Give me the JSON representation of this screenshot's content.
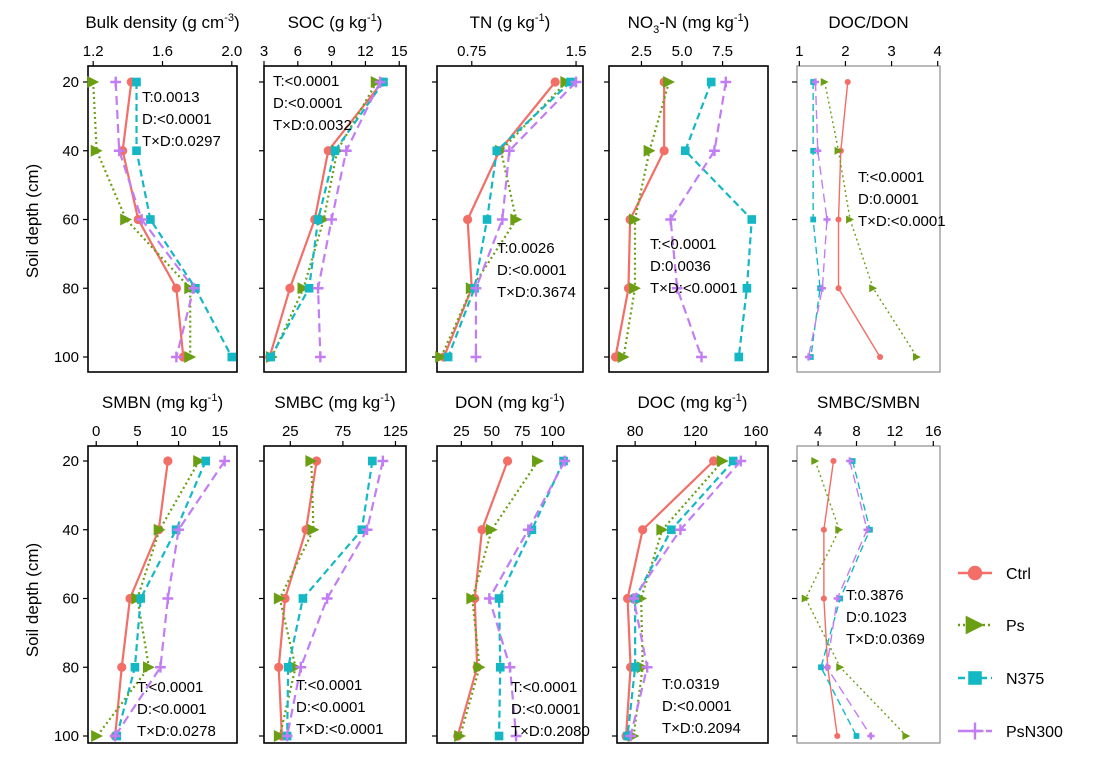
{
  "y_axis_label": "Soil depth (cm)",
  "legend": [
    {
      "name": "Ctrl",
      "color": "#F26E66",
      "marker": "circle",
      "dash": "solid"
    },
    {
      "name": "Ps",
      "color": "#6A9E13",
      "marker": "triangle",
      "dash": "dotted"
    },
    {
      "name": "N375",
      "color": "#14B8C4",
      "marker": "square",
      "dash": "dashed"
    },
    {
      "name": "PsN300",
      "color": "#C27DF5",
      "marker": "plus",
      "dash": "longdash"
    }
  ],
  "chart_data": [
    {
      "type": "line",
      "title": "Bulk density (g cm-3)",
      "title_parts": [
        "Bulk density (g cm",
        "-3",
        ")"
      ],
      "xticks": [
        1.2,
        1.6,
        2.0
      ],
      "xtick_labels": [
        "1.2",
        "1.6",
        "2.0"
      ],
      "xlim": [
        1.17,
        2.03
      ],
      "depth": [
        20,
        40,
        60,
        80,
        100
      ],
      "yticks": [
        20,
        40,
        60,
        80,
        100
      ],
      "series": [
        {
          "name": "Ctrl",
          "values": [
            1.42,
            1.37,
            1.46,
            1.68,
            1.72
          ]
        },
        {
          "name": "Ps",
          "values": [
            1.2,
            1.22,
            1.39,
            1.76,
            1.76
          ]
        },
        {
          "name": "N375",
          "values": [
            1.45,
            1.45,
            1.53,
            1.79,
            2.0
          ]
        },
        {
          "name": "PsN300",
          "values": [
            1.33,
            1.35,
            1.48,
            1.78,
            1.68
          ]
        }
      ],
      "annotations": [
        "T:0.0013",
        "D:<0.0001",
        "T×D:0.0297"
      ]
    },
    {
      "type": "line",
      "title": "SOC (g kg-1)",
      "title_parts": [
        "SOC (g kg",
        "-1",
        ")"
      ],
      "xticks": [
        3,
        6,
        9,
        12,
        15
      ],
      "xtick_labels": [
        "3",
        "6",
        "9",
        "12",
        "15"
      ],
      "xlim": [
        3,
        15.6
      ],
      "depth": [
        20,
        40,
        60,
        80,
        100
      ],
      "yticks": [
        20,
        40,
        60,
        80,
        100
      ],
      "series": [
        {
          "name": "Ctrl",
          "values": [
            13.5,
            8.7,
            7.5,
            5.3,
            3.5
          ]
        },
        {
          "name": "Ps",
          "values": [
            13.0,
            9.5,
            8.3,
            6.5,
            3.7
          ]
        },
        {
          "name": "N375",
          "values": [
            13.6,
            9.3,
            7.8,
            7.0,
            3.6
          ]
        },
        {
          "name": "PsN300",
          "values": [
            13.3,
            10.3,
            9.0,
            7.8,
            8.0
          ]
        }
      ],
      "annotations": [
        "T:<0.0001",
        "D:<0.0001",
        "T×D:0.0032"
      ]
    },
    {
      "type": "line",
      "title": "TN (g kg-1)",
      "title_parts": [
        "TN (g kg",
        "-1",
        ")"
      ],
      "xticks": [
        0.75,
        1.5
      ],
      "xtick_labels": [
        "0.75",
        "1.5"
      ],
      "xlim": [
        0.5,
        1.55
      ],
      "depth": [
        20,
        40,
        60,
        80,
        100
      ],
      "yticks": [
        20,
        40,
        60,
        80,
        100
      ],
      "series": [
        {
          "name": "Ctrl",
          "values": [
            1.35,
            0.95,
            0.72,
            0.75,
            0.55
          ]
        },
        {
          "name": "Ps",
          "values": [
            1.43,
            0.96,
            1.07,
            0.75,
            0.53
          ]
        },
        {
          "name": "N375",
          "values": [
            1.46,
            0.93,
            0.86,
            0.77,
            0.58
          ]
        },
        {
          "name": "PsN300",
          "values": [
            1.5,
            1.02,
            0.97,
            0.78,
            0.78
          ]
        }
      ],
      "annotations": [
        "T:0.0026",
        "D:<0.0001",
        "T×D:0.3674"
      ]
    },
    {
      "type": "line",
      "title": "NO3--N (mg kg-1)",
      "title_parts": [
        "NO",
        "3",
        "-N (mg kg",
        "-1",
        ")"
      ],
      "xticks": [
        2.5,
        5.0,
        7.5
      ],
      "xtick_labels": [
        "2.5",
        "5.0",
        "7.5"
      ],
      "xlim": [
        0.5,
        10.3
      ],
      "depth": [
        20,
        40,
        60,
        80,
        100
      ],
      "yticks": [
        20,
        40,
        60,
        80,
        100
      ],
      "series": [
        {
          "name": "Ctrl",
          "values": [
            3.9,
            3.9,
            1.8,
            1.7,
            0.9
          ]
        },
        {
          "name": "Ps",
          "values": [
            4.2,
            3.0,
            2.1,
            2.1,
            1.4
          ]
        },
        {
          "name": "N375",
          "values": [
            6.8,
            5.2,
            9.3,
            9.0,
            8.5
          ]
        },
        {
          "name": "PsN300",
          "values": [
            7.7,
            7.0,
            4.3,
            4.7,
            6.2
          ]
        }
      ],
      "annotations": [
        "T:<0.0001",
        "D:0.0036",
        "T×D:<0.0001"
      ]
    },
    {
      "type": "line",
      "title": "DOC/DON",
      "title_parts": [
        "DOC/DON"
      ],
      "xticks": [
        1,
        2,
        3,
        4
      ],
      "xtick_labels": [
        "1",
        "2",
        "3",
        "4"
      ],
      "xlim": [
        0.95,
        4.05
      ],
      "depth": [
        20,
        40,
        60,
        80,
        100
      ],
      "yticks": [
        20,
        40,
        60,
        80,
        100
      ],
      "series": [
        {
          "name": "Ctrl",
          "values": [
            2.05,
            1.9,
            1.85,
            1.85,
            2.75
          ]
        },
        {
          "name": "Ps",
          "values": [
            1.55,
            1.85,
            2.1,
            2.6,
            3.55
          ]
        },
        {
          "name": "N375",
          "values": [
            1.3,
            1.3,
            1.3,
            1.45,
            1.25
          ]
        },
        {
          "name": "PsN300",
          "values": [
            1.35,
            1.4,
            1.6,
            1.5,
            1.2
          ]
        }
      ],
      "annotations": [
        "T:<0.0001",
        "D:0.0001",
        "T×D:<0.0001"
      ]
    },
    {
      "type": "line",
      "title": "SMBN (mg kg-1)",
      "title_parts": [
        "SMBN (mg kg",
        "-1",
        ")"
      ],
      "xticks": [
        0,
        5,
        10,
        15
      ],
      "xtick_labels": [
        "0",
        "5",
        "10",
        "15"
      ],
      "xlim": [
        -1.0,
        17.1
      ],
      "depth": [
        20,
        40,
        60,
        80,
        100
      ],
      "yticks": [
        20,
        40,
        60,
        80,
        100
      ],
      "series": [
        {
          "name": "Ctrl",
          "values": [
            8.7,
            7.6,
            4.1,
            3.1,
            2.3
          ]
        },
        {
          "name": "Ps",
          "values": [
            12.5,
            7.7,
            5.0,
            6.4,
            0.1
          ]
        },
        {
          "name": "N375",
          "values": [
            13.3,
            9.7,
            5.4,
            4.7,
            2.5
          ]
        },
        {
          "name": "PsN300",
          "values": [
            15.6,
            10.0,
            8.7,
            7.8,
            2.3
          ]
        }
      ],
      "annotations": [
        "T:<0.0001",
        "D:<0.0001",
        "T×D:0.0278"
      ]
    },
    {
      "type": "line",
      "title": "SMBC (mg kg-1)",
      "title_parts": [
        "SMBC (mg kg",
        "-1",
        ")"
      ],
      "xticks": [
        25,
        75,
        125
      ],
      "xtick_labels": [
        "25",
        "75",
        "125"
      ],
      "xlim": [
        0,
        135
      ],
      "depth": [
        20,
        40,
        60,
        80,
        100
      ],
      "yticks": [
        20,
        40,
        60,
        80,
        100
      ],
      "series": [
        {
          "name": "Ctrl",
          "values": [
            50,
            40,
            20,
            14,
            17
          ]
        },
        {
          "name": "Ps",
          "values": [
            45,
            47,
            15,
            30,
            15
          ]
        },
        {
          "name": "N375",
          "values": [
            103,
            93,
            37,
            23,
            22
          ]
        },
        {
          "name": "PsN300",
          "values": [
            113,
            98,
            60,
            35,
            22
          ]
        }
      ],
      "annotations": [
        "T:<0.0001",
        "D:<0.0001",
        "T×D:<0.0001"
      ]
    },
    {
      "type": "line",
      "title": "DON (mg kg-1)",
      "title_parts": [
        "DON (mg kg",
        "-1",
        ")"
      ],
      "xticks": [
        25,
        50,
        75,
        100
      ],
      "xtick_labels": [
        "25",
        "50",
        "75",
        "100"
      ],
      "xlim": [
        5,
        125
      ],
      "depth": [
        20,
        40,
        60,
        80,
        100
      ],
      "yticks": [
        20,
        40,
        60,
        80,
        100
      ],
      "series": [
        {
          "name": "Ctrl",
          "values": [
            63,
            42,
            36,
            38,
            22
          ]
        },
        {
          "name": "Ps",
          "values": [
            88,
            50,
            34,
            40,
            24
          ]
        },
        {
          "name": "N375",
          "values": [
            109,
            83,
            56,
            57,
            56
          ]
        },
        {
          "name": "PsN300",
          "values": [
            110,
            80,
            48,
            65,
            70
          ]
        }
      ],
      "annotations": [
        "T:<0.0001",
        "D:<0.0001",
        "T×D:0.2080"
      ]
    },
    {
      "type": "line",
      "title": "DOC (mg kg-1)",
      "title_parts": [
        "DOC (mg kg",
        "-1",
        ")"
      ],
      "xticks": [
        80,
        120,
        160
      ],
      "xtick_labels": [
        "80",
        "120",
        "160"
      ],
      "xlim": [
        68,
        168
      ],
      "depth": [
        20,
        40,
        60,
        80,
        100
      ],
      "yticks": [
        20,
        40,
        60,
        80,
        100
      ],
      "series": [
        {
          "name": "Ctrl",
          "values": [
            132,
            85,
            75,
            77,
            74
          ]
        },
        {
          "name": "Ps",
          "values": [
            138,
            98,
            84,
            85,
            79
          ]
        },
        {
          "name": "N375",
          "values": [
            145,
            104,
            80,
            80,
            75
          ]
        },
        {
          "name": "PsN300",
          "values": [
            150,
            110,
            79,
            88,
            77
          ]
        }
      ],
      "annotations": [
        "T:0.0319",
        "D:<0.0001",
        "T×D:0.2094"
      ]
    },
    {
      "type": "line",
      "title": "SMBC/SMBN",
      "title_parts": [
        "SMBC/SMBN"
      ],
      "xticks": [
        4,
        8,
        12,
        16
      ],
      "xtick_labels": [
        "4",
        "8",
        "12",
        "16"
      ],
      "xlim": [
        1.8,
        16.7
      ],
      "depth": [
        20,
        40,
        60,
        80,
        100
      ],
      "yticks": [
        20,
        40,
        60,
        80,
        100
      ],
      "series": [
        {
          "name": "Ctrl",
          "values": [
            5.6,
            4.6,
            4.6,
            5.0,
            6.0
          ]
        },
        {
          "name": "Ps",
          "values": [
            3.7,
            6.2,
            2.7,
            6.3,
            13.2
          ]
        },
        {
          "name": "N375",
          "values": [
            7.6,
            9.4,
            6.3,
            4.3,
            8.0
          ]
        },
        {
          "name": "PsN300",
          "values": [
            7.3,
            9.1,
            6.0,
            4.9,
            9.5
          ]
        }
      ],
      "annotations": [
        "T:0.3876",
        "D:0.1023",
        "T×D:0.0369"
      ]
    }
  ]
}
